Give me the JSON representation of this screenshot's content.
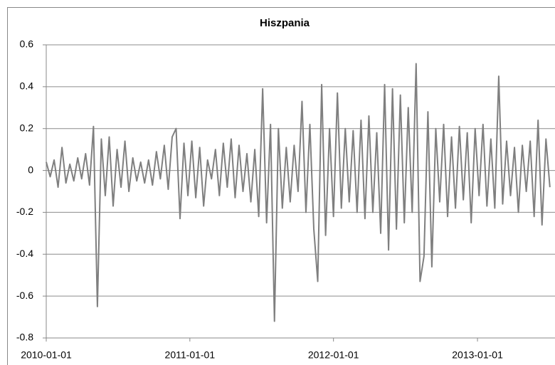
{
  "chart_data": {
    "type": "line",
    "title": "Hiszpania",
    "x": [
      "2010-01-01",
      "2010-01-11",
      "2010-01-21",
      "2010-01-31",
      "2010-02-10",
      "2010-02-20",
      "2010-03-02",
      "2010-03-12",
      "2010-03-22",
      "2010-04-01",
      "2010-04-11",
      "2010-04-21",
      "2010-05-01",
      "2010-05-11",
      "2010-05-21",
      "2010-05-31",
      "2010-06-10",
      "2010-06-20",
      "2010-06-30",
      "2010-07-10",
      "2010-07-20",
      "2010-07-30",
      "2010-08-09",
      "2010-08-19",
      "2010-08-29",
      "2010-09-08",
      "2010-09-18",
      "2010-09-28",
      "2010-10-08",
      "2010-10-18",
      "2010-10-28",
      "2010-11-07",
      "2010-11-17",
      "2010-11-27",
      "2010-12-07",
      "2010-12-17",
      "2010-12-27",
      "2011-01-06",
      "2011-01-16",
      "2011-01-26",
      "2011-02-05",
      "2011-02-15",
      "2011-02-25",
      "2011-03-07",
      "2011-03-17",
      "2011-03-27",
      "2011-04-06",
      "2011-04-16",
      "2011-04-26",
      "2011-05-06",
      "2011-05-16",
      "2011-05-26",
      "2011-06-05",
      "2011-06-15",
      "2011-06-25",
      "2011-07-05",
      "2011-07-15",
      "2011-07-25",
      "2011-08-04",
      "2011-08-14",
      "2011-08-24",
      "2011-09-03",
      "2011-09-13",
      "2011-09-23",
      "2011-10-03",
      "2011-10-13",
      "2011-10-23",
      "2011-11-02",
      "2011-11-12",
      "2011-11-22",
      "2011-12-02",
      "2011-12-12",
      "2011-12-22",
      "2012-01-01",
      "2012-01-11",
      "2012-01-21",
      "2012-01-31",
      "2012-02-10",
      "2012-02-20",
      "2012-03-01",
      "2012-03-11",
      "2012-03-21",
      "2012-03-31",
      "2012-04-10",
      "2012-04-20",
      "2012-04-30",
      "2012-05-10",
      "2012-05-20",
      "2012-05-30",
      "2012-06-09",
      "2012-06-19",
      "2012-06-29",
      "2012-07-09",
      "2012-07-19",
      "2012-07-29",
      "2012-08-08",
      "2012-08-18",
      "2012-08-28",
      "2012-09-07",
      "2012-09-17",
      "2012-09-27",
      "2012-10-07",
      "2012-10-17",
      "2012-10-27",
      "2012-11-06",
      "2012-11-16",
      "2012-11-26",
      "2012-12-06",
      "2012-12-16",
      "2012-12-26",
      "2013-01-05",
      "2013-01-15",
      "2013-01-25",
      "2013-02-04",
      "2013-02-14",
      "2013-02-24",
      "2013-03-06",
      "2013-03-16",
      "2013-03-26",
      "2013-04-05",
      "2013-04-15",
      "2013-04-25",
      "2013-05-05",
      "2013-05-15",
      "2013-05-25",
      "2013-06-04",
      "2013-06-14",
      "2013-06-24",
      "2013-07-04"
    ],
    "series": [
      {
        "color": "#7f7f7f",
        "values": [
          0.04,
          -0.03,
          0.05,
          -0.08,
          0.11,
          -0.06,
          0.03,
          -0.05,
          0.06,
          -0.04,
          0.08,
          -0.07,
          0.21,
          -0.65,
          0.15,
          -0.12,
          0.16,
          -0.17,
          0.1,
          -0.08,
          0.14,
          -0.1,
          0.06,
          -0.05,
          0.04,
          -0.06,
          0.05,
          -0.07,
          0.09,
          -0.04,
          0.12,
          -0.09,
          0.16,
          0.2,
          -0.23,
          0.13,
          -0.12,
          0.14,
          -0.13,
          0.11,
          -0.17,
          0.05,
          -0.04,
          0.1,
          -0.12,
          0.13,
          -0.08,
          0.15,
          -0.13,
          0.12,
          -0.1,
          0.08,
          -0.15,
          0.1,
          -0.22,
          0.39,
          -0.25,
          0.22,
          -0.72,
          0.2,
          -0.18,
          0.11,
          -0.15,
          0.12,
          -0.1,
          0.33,
          -0.2,
          0.22,
          -0.28,
          -0.53,
          0.41,
          -0.31,
          0.2,
          -0.22,
          0.37,
          -0.18,
          0.2,
          -0.15,
          0.19,
          -0.2,
          0.24,
          -0.23,
          0.26,
          -0.2,
          0.18,
          -0.3,
          0.41,
          -0.38,
          0.39,
          -0.28,
          0.36,
          -0.25,
          0.3,
          -0.2,
          0.51,
          -0.53,
          -0.41,
          0.28,
          -0.46,
          0.2,
          -0.15,
          0.22,
          -0.22,
          0.16,
          -0.18,
          0.21,
          -0.14,
          0.18,
          -0.25,
          0.2,
          -0.12,
          0.22,
          -0.17,
          0.15,
          -0.18,
          0.45,
          -0.16,
          0.14,
          -0.12,
          0.11,
          -0.2,
          0.12,
          -0.1,
          0.14,
          -0.22,
          0.24,
          -0.26,
          0.15,
          -0.08
        ]
      }
    ],
    "xlim": [
      "2010-01-01",
      "2013-07-17"
    ],
    "xticks": [
      "2010-01-01",
      "2011-01-01",
      "2012-01-01",
      "2013-01-01"
    ],
    "ylim": [
      -0.8,
      0.6
    ],
    "yticks": [
      -0.8,
      -0.6,
      -0.4,
      -0.2,
      0,
      0.2,
      0.4,
      0.6
    ],
    "grid": true
  }
}
